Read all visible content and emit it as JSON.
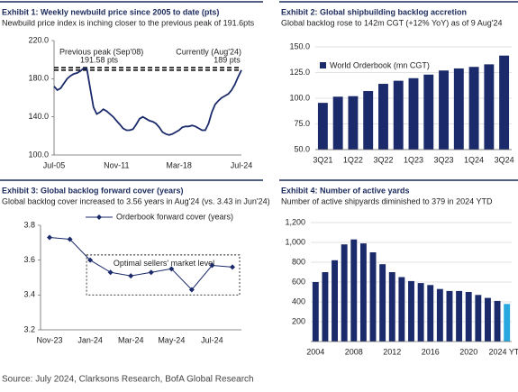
{
  "chart_data": [
    {
      "type": "line",
      "title": "Exhibit 1: Weekly newbuild price since 2005 to date (pts)",
      "subtitle": "Newbuild price index is inching closer to the previous peak of 191.6pts",
      "categories": [
        "Jul-05",
        null,
        null,
        null,
        null,
        null,
        null,
        null,
        null,
        null,
        null,
        null,
        null,
        null,
        null,
        null,
        null,
        null,
        null,
        "Nov-11",
        null,
        null,
        null,
        null,
        null,
        null,
        null,
        null,
        null,
        null,
        null,
        null,
        null,
        null,
        null,
        null,
        null,
        null,
        "Mar-18",
        null,
        null,
        null,
        null,
        null,
        null,
        null,
        null,
        null,
        null,
        null,
        null,
        null,
        null,
        null,
        null,
        null,
        null,
        "Jul-24"
      ],
      "values": [
        172,
        168,
        170,
        175,
        180,
        183,
        185,
        186,
        188,
        191,
        190,
        170,
        150,
        143,
        145,
        148,
        146,
        143,
        140,
        136,
        132,
        128,
        126,
        126,
        127,
        132,
        138,
        140,
        138,
        136,
        135,
        133,
        129,
        124,
        122,
        121,
        122,
        124,
        126,
        129,
        130,
        130,
        131,
        130,
        128,
        126,
        126,
        133,
        145,
        153,
        157,
        160,
        162,
        164,
        168,
        174,
        182,
        189
      ],
      "color": "#1b2a6b",
      "ylim": [
        100,
        220
      ],
      "yticks": [
        {
          "value": 100,
          "label": "100.0"
        },
        {
          "value": 140,
          "label": "140.0"
        },
        {
          "value": 180,
          "label": "180.0"
        },
        {
          "value": 220,
          "label": "220.0"
        }
      ],
      "reference_lines": [
        191.58,
        189
      ],
      "annotations": [
        "Previous peak (Sep'08)",
        "191.58 pts",
        "Currently (Aug'24)",
        "189 pts"
      ]
    },
    {
      "type": "bar",
      "title": "Exhibit 2: Global shipbuilding backlog accretion",
      "subtitle": "Global backlog rose to 142m CGT (+12% YoY) as of 9 Aug'24",
      "categories": [
        "3Q21",
        null,
        "1Q22",
        null,
        "3Q22",
        null,
        "1Q23",
        null,
        "3Q23",
        null,
        "1Q24",
        null,
        "3Q24"
      ],
      "series": [
        {
          "name": "World Orderbook (mn CGT)",
          "color": "#1b2a6b",
          "values": [
            95.5,
            101.5,
            102,
            107,
            114,
            117,
            119.5,
            123,
            127,
            129,
            130.5,
            133,
            141.5
          ]
        }
      ],
      "ylim": [
        50,
        150
      ],
      "yticks": [
        {
          "value": 50,
          "label": "50.0"
        },
        {
          "value": 75,
          "label": "75.0"
        },
        {
          "value": 100,
          "label": "100.0"
        },
        {
          "value": 125,
          "label": "125.0"
        },
        {
          "value": 150,
          "label": "150.0"
        }
      ],
      "grid": true,
      "legend": "top-left"
    },
    {
      "type": "line",
      "title": "Exhibit 3: Global backlog forward cover (years)",
      "subtitle": "Global backlog cover increased to 3.56 years in Aug'24 (vs. 3.43 in Jun'24)",
      "categories": [
        "Nov-23",
        null,
        "Jan-24",
        null,
        "Mar-24",
        null,
        "May-24",
        null,
        "Jul-24",
        null
      ],
      "series": [
        {
          "name": "Orderbook forward cover (years)",
          "color": "#1b2a6b",
          "values": [
            3.73,
            3.72,
            3.6,
            3.53,
            3.51,
            3.53,
            3.55,
            3.43,
            3.57,
            3.56
          ]
        }
      ],
      "markers": true,
      "ylim": [
        3.2,
        3.8
      ],
      "yticks": [
        3.2,
        3.4,
        3.6,
        3.8
      ],
      "legend": "top",
      "annotation_box": {
        "label": "Optimal sellers' market level",
        "ylim": [
          3.4,
          3.63
        ]
      }
    },
    {
      "type": "bar",
      "title": "Exhibit 4: Number of active yards",
      "subtitle": "Number of active shipyards diminished to 379 in 2024 YTD",
      "categories": [
        "2004",
        null,
        null,
        null,
        "2008",
        null,
        null,
        null,
        "2012",
        null,
        null,
        null,
        "2016",
        null,
        null,
        null,
        "2020",
        null,
        null,
        null,
        "2024 YTD"
      ],
      "values": [
        600,
        700,
        820,
        980,
        1030,
        990,
        900,
        780,
        700,
        650,
        610,
        590,
        570,
        530,
        510,
        510,
        500,
        470,
        440,
        410,
        379
      ],
      "colors": [
        "#1b2a6b",
        "#1b2a6b",
        "#1b2a6b",
        "#1b2a6b",
        "#1b2a6b",
        "#1b2a6b",
        "#1b2a6b",
        "#1b2a6b",
        "#1b2a6b",
        "#1b2a6b",
        "#1b2a6b",
        "#1b2a6b",
        "#1b2a6b",
        "#1b2a6b",
        "#1b2a6b",
        "#1b2a6b",
        "#1b2a6b",
        "#1b2a6b",
        "#1b2a6b",
        "#1b2a6b",
        "#29a8e0"
      ],
      "ylim": [
        0,
        1200
      ],
      "yticks": [
        200,
        400,
        600,
        800,
        {
          "value": 1000,
          "label": "1,000"
        },
        {
          "value": 1200,
          "label": "1,200"
        }
      ],
      "grid": true
    }
  ],
  "source": "Source: July 2024, Clarksons Research, BofA Global Research"
}
